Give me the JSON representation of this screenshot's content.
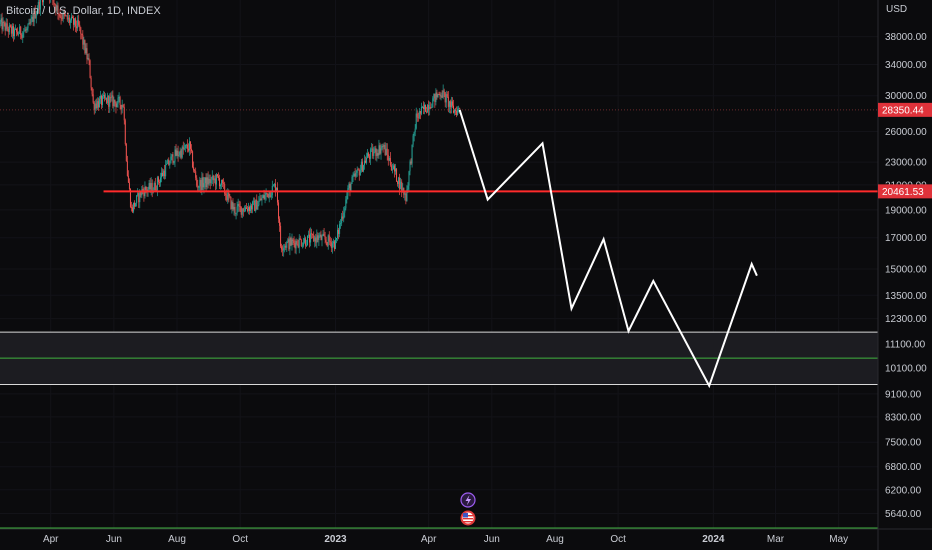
{
  "header": {
    "symbol_title": "Bitcoin / U.S. Dollar, 1D, INDEX",
    "currency": "USD"
  },
  "colors": {
    "background": "#0b0b0d",
    "up": "#26a69a",
    "down": "#ef5350",
    "support_line": "#ff2b2b",
    "price_label": "#e0323a",
    "zone_border": "#d9d9d9",
    "zone_mid": "#3fb23f",
    "bottom_line": "#3fb23f",
    "projection": "#ffffff"
  },
  "icons": [
    "lightning-icon",
    "us-flag-icon"
  ],
  "chart_data": {
    "type": "candlestick",
    "scale": "log",
    "ylim": [
      5300,
      44000
    ],
    "y_ticks": [
      5640,
      6200,
      6800,
      7500,
      8300,
      9100,
      10100,
      11100,
      12300,
      13500,
      15000,
      17000,
      19000,
      21000,
      23000,
      26000,
      30000,
      34000,
      38000
    ],
    "y_tick_labels": [
      "5640.00",
      "6200.00",
      "6800.00",
      "7500.00",
      "8300.00",
      "9100.00",
      "10100.00",
      "11100.00",
      "12300.00",
      "13500.00",
      "15000.00",
      "17000.00",
      "19000.00",
      "21000.00",
      "23000.00",
      "26000.00",
      "30000.00",
      "34000.00",
      "38000.00"
    ],
    "x_range": [
      "2022-02-11",
      "2024-06-08"
    ],
    "x_ticks": [
      {
        "date": "2022-04-01",
        "label": "Apr",
        "bold": false
      },
      {
        "date": "2022-06-01",
        "label": "Jun",
        "bold": false
      },
      {
        "date": "2022-08-01",
        "label": "Aug",
        "bold": false
      },
      {
        "date": "2022-10-01",
        "label": "Oct",
        "bold": false
      },
      {
        "date": "2023-01-01",
        "label": "2023",
        "bold": true
      },
      {
        "date": "2023-04-01",
        "label": "Apr",
        "bold": false
      },
      {
        "date": "2023-06-01",
        "label": "Jun",
        "bold": false
      },
      {
        "date": "2023-08-01",
        "label": "Aug",
        "bold": false
      },
      {
        "date": "2023-10-01",
        "label": "Oct",
        "bold": false
      },
      {
        "date": "2024-01-01",
        "label": "2024",
        "bold": true
      },
      {
        "date": "2024-03-01",
        "label": "Mar",
        "bold": false
      },
      {
        "date": "2024-05-01",
        "label": "May",
        "bold": false
      }
    ],
    "price_anchors": [
      [
        "2022-02-11",
        40000
      ],
      [
        "2022-02-25",
        38500
      ],
      [
        "2022-03-10",
        39000
      ],
      [
        "2022-03-28",
        46500
      ],
      [
        "2022-04-10",
        41500
      ],
      [
        "2022-04-28",
        39500
      ],
      [
        "2022-05-08",
        34000
      ],
      [
        "2022-05-12",
        29000
      ],
      [
        "2022-05-25",
        29500
      ],
      [
        "2022-06-10",
        29000
      ],
      [
        "2022-06-14",
        22000
      ],
      [
        "2022-06-18",
        19000
      ],
      [
        "2022-06-28",
        20500
      ],
      [
        "2022-07-10",
        20800
      ],
      [
        "2022-07-28",
        23500
      ],
      [
        "2022-08-13",
        24500
      ],
      [
        "2022-08-20",
        21000
      ],
      [
        "2022-09-10",
        21500
      ],
      [
        "2022-09-25",
        19000
      ],
      [
        "2022-10-15",
        19300
      ],
      [
        "2022-11-05",
        21000
      ],
      [
        "2022-11-09",
        16500
      ],
      [
        "2022-12-15",
        17000
      ],
      [
        "2023-01-01",
        16600
      ],
      [
        "2023-01-14",
        20800
      ],
      [
        "2023-02-01",
        23500
      ],
      [
        "2023-02-16",
        24500
      ],
      [
        "2023-03-10",
        20000
      ],
      [
        "2023-03-20",
        27500
      ],
      [
        "2023-04-13",
        30500
      ],
      [
        "2023-04-25",
        28300
      ],
      [
        "2023-05-01",
        28350
      ]
    ],
    "projection_path": [
      [
        "2023-05-01",
        28350
      ],
      [
        "2023-05-28",
        19800
      ],
      [
        "2023-07-20",
        24800
      ],
      [
        "2023-08-17",
        12800
      ],
      [
        "2023-09-17",
        16900
      ],
      [
        "2023-10-11",
        11700
      ],
      [
        "2023-11-04",
        14300
      ],
      [
        "2023-12-28",
        9400
      ],
      [
        "2024-02-07",
        15300
      ],
      [
        "2024-02-12",
        14600
      ]
    ],
    "horizontal_lines": [
      {
        "value": 20461.53,
        "label": "20461.53",
        "from": "2022-05-22",
        "style": "support"
      },
      {
        "value": 28350.44,
        "label": "28350.44",
        "from": "2022-02-11",
        "style": "last-price-dotted"
      },
      {
        "value": 11650,
        "style": "zone-top"
      },
      {
        "value": 10500,
        "style": "zone-mid"
      },
      {
        "value": 9450,
        "style": "zone-bottom"
      }
    ],
    "title": "",
    "xlabel": "",
    "ylabel": ""
  }
}
